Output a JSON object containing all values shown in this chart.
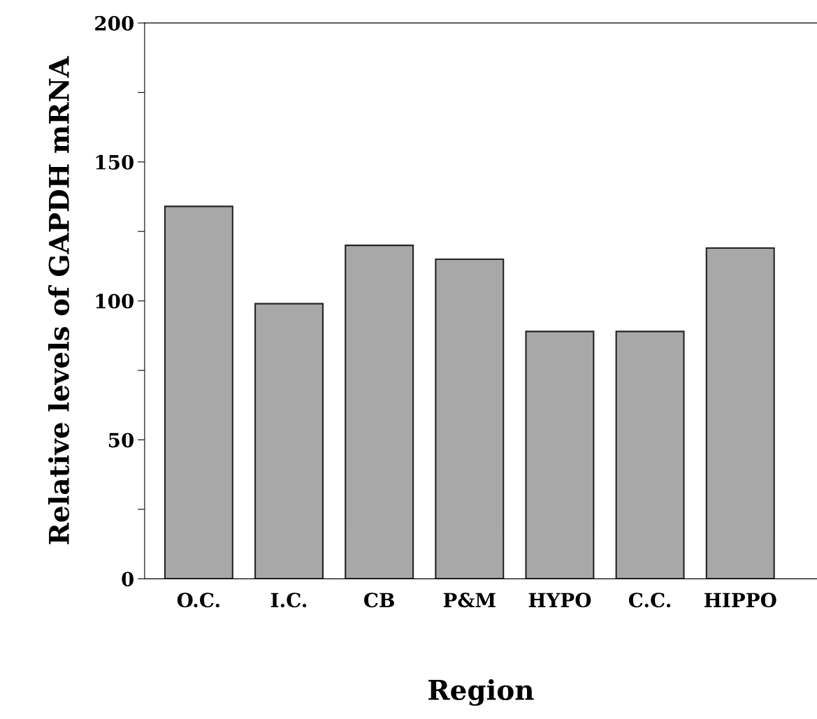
{
  "chart_data": {
    "type": "bar",
    "xlabel": "Region",
    "ylabel": "Relative levels of GAPDH mRNA",
    "categories": [
      "O.C.",
      "I.C.",
      "CB",
      "P&M",
      "HYPO",
      "C.C.",
      "HIPPO"
    ],
    "values": [
      134,
      99,
      120,
      115,
      89,
      89,
      119
    ],
    "color": "#a8a8a8",
    "ylim": [
      0,
      200
    ],
    "yticks": [
      0,
      {
        "value": 25,
        "label": null
      },
      50,
      {
        "value": 75,
        "label": null
      },
      100,
      {
        "value": 125,
        "label": null
      },
      150,
      {
        "value": 175,
        "label": null
      },
      200
    ],
    "grid": false,
    "legend": false
  }
}
